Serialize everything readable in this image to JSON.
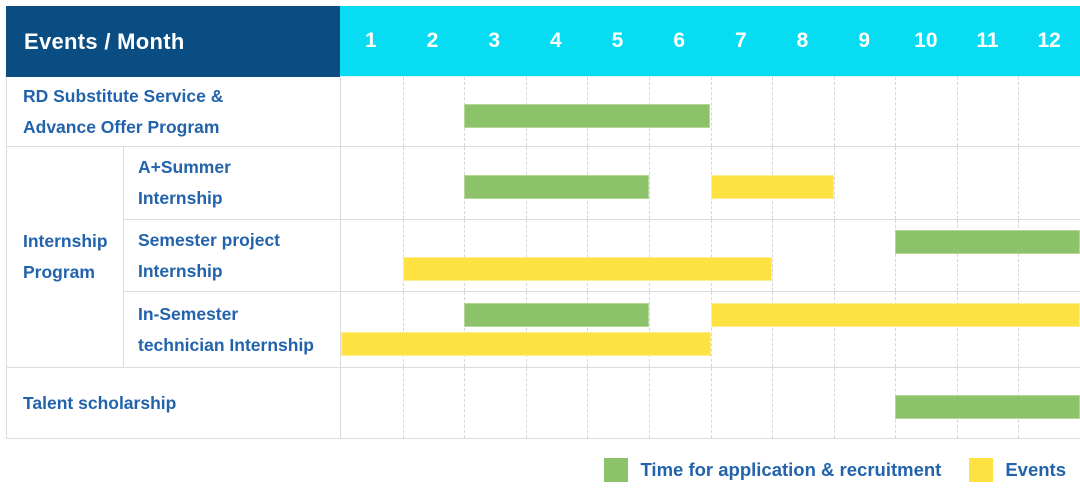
{
  "header": {
    "title": "Events / Month",
    "months": [
      "1",
      "2",
      "3",
      "4",
      "5",
      "6",
      "7",
      "8",
      "9",
      "10",
      "11",
      "12"
    ]
  },
  "labels": {
    "row1": [
      "RD Substitute Service &",
      "Advance Offer Program"
    ],
    "group": [
      "Internship",
      "Program"
    ],
    "sub1": [
      "A+Summer",
      "Internship"
    ],
    "sub2": [
      "Semester project",
      "Internship"
    ],
    "sub3": [
      "In-Semester",
      "technician Internship"
    ],
    "row5": [
      "Talent scholarship"
    ]
  },
  "gantt": {
    "rows": [
      {
        "lanes": 1,
        "bars": [
          {
            "color": "green",
            "start": 3,
            "end": 6,
            "lane": 0
          }
        ]
      },
      {
        "lanes": 1,
        "bars": [
          {
            "color": "green",
            "start": 3,
            "end": 5,
            "lane": 0
          },
          {
            "color": "yellow",
            "start": 7,
            "end": 8,
            "lane": 0
          }
        ]
      },
      {
        "lanes": 2,
        "bars": [
          {
            "color": "green",
            "start": 10,
            "end": 12,
            "lane": 0
          },
          {
            "color": "yellow",
            "start": 2,
            "end": 7,
            "lane": 1
          }
        ]
      },
      {
        "lanes": 2,
        "bars": [
          {
            "color": "green",
            "start": 3,
            "end": 5,
            "lane": 0
          },
          {
            "color": "yellow",
            "start": 7,
            "end": 12,
            "lane": 0
          },
          {
            "color": "yellow",
            "start": 1,
            "end": 6,
            "lane": 1
          }
        ]
      },
      {
        "lanes": 1,
        "bars": [
          {
            "color": "green",
            "start": 10,
            "end": 12,
            "lane": 0
          }
        ]
      }
    ]
  },
  "legend": {
    "items": [
      {
        "key": "green",
        "label": "Time for application & recruitment",
        "swatch": "#8cc269"
      },
      {
        "key": "yellow",
        "label": "Events",
        "swatch": "#fde242"
      }
    ]
  },
  "colors": {
    "header_navy": "#0a4d83",
    "header_cyan": "#07dcf2",
    "bar_green": "#8cc269",
    "bar_yellow": "#fde242",
    "label_blue": "#2263ac",
    "grid_gray": "#dcdcdc"
  },
  "chart_data": {
    "type": "bar",
    "subtype": "gantt-schedule",
    "title": "Events / Month",
    "xlabel": "Month",
    "x_ticks": [
      1,
      2,
      3,
      4,
      5,
      6,
      7,
      8,
      9,
      10,
      11,
      12
    ],
    "x_range": [
      1,
      12
    ],
    "grid": "dashed-vertical-month-lines",
    "legend_position": "bottom-right",
    "series_legend": [
      "Time for application & recruitment",
      "Events"
    ],
    "rows": [
      {
        "category": "RD Substitute Service & Advance Offer Program",
        "bars": [
          {
            "series": "Time for application & recruitment",
            "start_month": 3,
            "end_month": 6
          }
        ]
      },
      {
        "category": "Internship Program — A+Summer Internship",
        "bars": [
          {
            "series": "Time for application & recruitment",
            "start_month": 3,
            "end_month": 5
          },
          {
            "series": "Events",
            "start_month": 7,
            "end_month": 8
          }
        ]
      },
      {
        "category": "Internship Program — Semester project Internship",
        "bars": [
          {
            "series": "Time for application & recruitment",
            "start_month": 10,
            "end_month": 12
          },
          {
            "series": "Events",
            "start_month": 2,
            "end_month": 7
          }
        ]
      },
      {
        "category": "Internship Program — In-Semester technician Internship",
        "bars": [
          {
            "series": "Time for application & recruitment",
            "start_month": 3,
            "end_month": 5
          },
          {
            "series": "Events",
            "start_month": 7,
            "end_month": 12
          },
          {
            "series": "Events",
            "start_month": 1,
            "end_month": 6
          }
        ]
      },
      {
        "category": "Talent scholarship",
        "bars": [
          {
            "series": "Time for application & recruitment",
            "start_month": 10,
            "end_month": 12
          }
        ]
      }
    ]
  }
}
